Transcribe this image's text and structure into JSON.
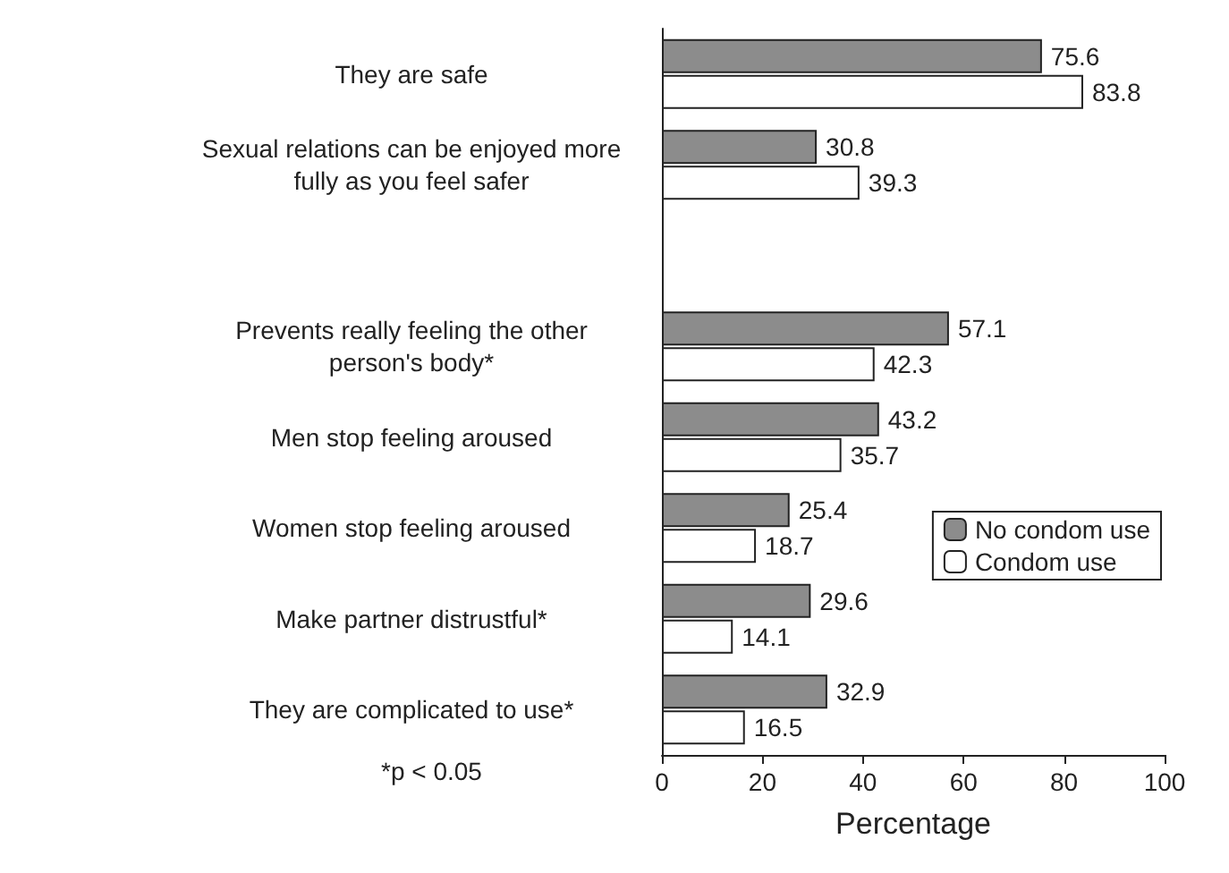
{
  "chart_data": {
    "type": "bar",
    "orientation": "horizontal",
    "xlabel": "Percentage",
    "categories": [
      "They are safe",
      "Sexual relations can be enjoyed more\nfully as you feel safer",
      null,
      "Prevents really feeling the other\nperson's body*",
      "Men stop feeling aroused",
      "Women stop feeling aroused",
      "Make partner distrustful*",
      "They are complicated to use*"
    ],
    "series": [
      {
        "name": "No condom use",
        "color": "#8c8c8c",
        "values": [
          75.6,
          30.8,
          null,
          57.1,
          43.2,
          25.4,
          29.6,
          32.9
        ]
      },
      {
        "name": "Condom use",
        "color": "#ffffff",
        "values": [
          83.8,
          39.3,
          null,
          42.3,
          35.7,
          18.7,
          14.1,
          16.5
        ]
      }
    ],
    "xlim": [
      0,
      100
    ],
    "xticks": [
      0,
      20,
      40,
      60,
      80,
      100
    ],
    "grid": false,
    "legend": "right",
    "data_labels": true,
    "annotations": [
      "*p < 0.05"
    ]
  }
}
